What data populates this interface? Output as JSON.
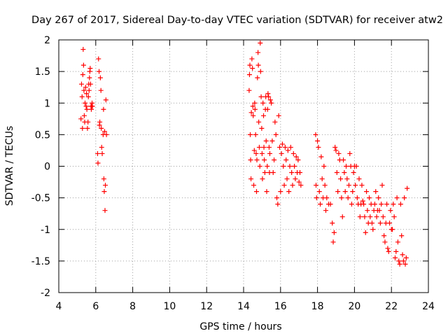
{
  "chart_data": {
    "type": "scatter",
    "title": "Day 267 of 2017, Sidereal Day-to-day VTEC variation (SDTVAR) for receiver atw2",
    "xlabel": "GPS time / hours",
    "ylabel": "SDTVAR / TECUs",
    "xlim": [
      4,
      24
    ],
    "ylim": [
      -2,
      2
    ],
    "xticks": [
      4,
      6,
      8,
      10,
      12,
      14,
      16,
      18,
      20,
      22,
      24
    ],
    "yticks": [
      -2,
      -1.5,
      -1,
      -0.5,
      0,
      0.5,
      1,
      1.5,
      2
    ],
    "xtick_labels": [
      "4",
      "6",
      "8",
      "10",
      "12",
      "14",
      "16",
      "18",
      "20",
      "22",
      "24"
    ],
    "ytick_labels": [
      "-2",
      "-1.5",
      "-1",
      "-0.5",
      "0",
      "0.5",
      "1",
      "1.5",
      "2"
    ],
    "grid": true,
    "marker": "+",
    "marker_color": "#ff0000",
    "series": [
      {
        "name": "SDTVAR",
        "points": [
          [
            5.2,
            0.75
          ],
          [
            5.23,
            1.3
          ],
          [
            5.26,
            1.1
          ],
          [
            5.28,
            0.6
          ],
          [
            5.3,
            1.45
          ],
          [
            5.32,
            1.85
          ],
          [
            5.34,
            1.6
          ],
          [
            5.36,
            1.2
          ],
          [
            5.38,
            0.8
          ],
          [
            5.4,
            0.7
          ],
          [
            5.42,
            1.0
          ],
          [
            5.45,
            1.25
          ],
          [
            5.48,
            0.95
          ],
          [
            5.5,
            1.15
          ],
          [
            5.52,
            0.9
          ],
          [
            5.55,
            0.6
          ],
          [
            5.58,
            0.7
          ],
          [
            5.6,
            1.1
          ],
          [
            5.62,
            1.3
          ],
          [
            5.64,
            1.2
          ],
          [
            5.66,
            1.4
          ],
          [
            5.68,
            1.5
          ],
          [
            5.7,
            1.55
          ],
          [
            5.72,
            1.3
          ],
          [
            5.74,
            0.95
          ],
          [
            5.76,
            0.9
          ],
          [
            5.78,
            0.95
          ],
          [
            5.8,
            1.0
          ],
          [
            5.82,
            0.95
          ],
          [
            6.1,
            0.2
          ],
          [
            6.12,
            0.05
          ],
          [
            6.15,
            1.7
          ],
          [
            6.18,
            1.5
          ],
          [
            6.2,
            0.65
          ],
          [
            6.22,
            0.7
          ],
          [
            6.25,
            1.4
          ],
          [
            6.28,
            1.2
          ],
          [
            6.3,
            0.6
          ],
          [
            6.32,
            0.3
          ],
          [
            6.35,
            0.2
          ],
          [
            6.4,
            0.5
          ],
          [
            6.42,
            0.9
          ],
          [
            6.44,
            -0.2
          ],
          [
            6.46,
            -0.4
          ],
          [
            6.48,
            0.55
          ],
          [
            6.5,
            -0.7
          ],
          [
            6.52,
            -0.3
          ],
          [
            6.55,
            1.05
          ],
          [
            6.58,
            0.5
          ],
          [
            14.3,
            1.2
          ],
          [
            14.32,
            1.45
          ],
          [
            14.34,
            1.6
          ],
          [
            14.36,
            0.5
          ],
          [
            14.38,
            0.1
          ],
          [
            14.4,
            -0.2
          ],
          [
            14.42,
            0.85
          ],
          [
            14.45,
            1.7
          ],
          [
            14.48,
            1.55
          ],
          [
            14.5,
            0.95
          ],
          [
            14.52,
            0.8
          ],
          [
            14.55,
            -0.3
          ],
          [
            14.58,
            0.25
          ],
          [
            14.6,
            1.0
          ],
          [
            14.62,
            0.9
          ],
          [
            14.65,
            0.5
          ],
          [
            14.68,
            0.2
          ],
          [
            14.7,
            -0.4
          ],
          [
            14.72,
            0.1
          ],
          [
            14.75,
            1.4
          ],
          [
            14.78,
            1.8
          ],
          [
            14.8,
            1.6
          ],
          [
            14.82,
            0.7
          ],
          [
            14.85,
            0.3
          ],
          [
            14.88,
            0.0
          ],
          [
            14.9,
            1.95
          ],
          [
            14.92,
            1.5
          ],
          [
            14.95,
            1.1
          ],
          [
            14.98,
            0.6
          ],
          [
            15.0,
            0.2
          ],
          [
            15.02,
            -0.2
          ],
          [
            15.05,
            1.0
          ],
          [
            15.08,
            0.8
          ],
          [
            15.1,
            0.3
          ],
          [
            15.12,
            0.1
          ],
          [
            15.15,
            -0.1
          ],
          [
            15.18,
            0.9
          ],
          [
            15.2,
            1.1
          ],
          [
            15.22,
            0.4
          ],
          [
            15.25,
            -0.4
          ],
          [
            15.28,
            0.0
          ],
          [
            15.3,
            0.9
          ],
          [
            15.32,
            1.15
          ],
          [
            15.35,
            1.1
          ],
          [
            15.38,
            0.3
          ],
          [
            15.4,
            -0.1
          ],
          [
            15.42,
            0.2
          ],
          [
            15.45,
            1.05
          ],
          [
            15.5,
            1.0
          ],
          [
            15.55,
            0.4
          ],
          [
            15.6,
            -0.1
          ],
          [
            15.65,
            0.1
          ],
          [
            15.7,
            0.7
          ],
          [
            15.75,
            0.5
          ],
          [
            15.8,
            -0.5
          ],
          [
            15.85,
            -0.6
          ],
          [
            15.9,
            0.8
          ],
          [
            15.95,
            0.3
          ],
          [
            16.0,
            -0.4
          ],
          [
            16.05,
            0.2
          ],
          [
            16.1,
            0.35
          ],
          [
            16.15,
            0.0
          ],
          [
            16.2,
            -0.3
          ],
          [
            16.25,
            0.3
          ],
          [
            16.3,
            0.1
          ],
          [
            16.35,
            -0.2
          ],
          [
            16.4,
            0.25
          ],
          [
            16.45,
            -0.4
          ],
          [
            16.5,
            0.0
          ],
          [
            16.55,
            0.3
          ],
          [
            16.6,
            -0.1
          ],
          [
            16.65,
            -0.3
          ],
          [
            16.7,
            0.2
          ],
          [
            16.75,
            0.0
          ],
          [
            16.8,
            -0.2
          ],
          [
            16.85,
            0.15
          ],
          [
            16.9,
            -0.1
          ],
          [
            16.95,
            0.1
          ],
          [
            17.0,
            -0.25
          ],
          [
            17.05,
            -0.1
          ],
          [
            17.1,
            -0.3
          ],
          [
            17.9,
            0.5
          ],
          [
            17.92,
            -0.3
          ],
          [
            17.95,
            -0.5
          ],
          [
            18.0,
            0.4
          ],
          [
            18.05,
            0.3
          ],
          [
            18.1,
            -0.4
          ],
          [
            18.15,
            -0.6
          ],
          [
            18.2,
            0.15
          ],
          [
            18.25,
            -0.2
          ],
          [
            18.3,
            -0.5
          ],
          [
            18.35,
            0.0
          ],
          [
            18.4,
            -0.3
          ],
          [
            18.45,
            -0.7
          ],
          [
            18.5,
            -0.5
          ],
          [
            18.6,
            -0.6
          ],
          [
            18.7,
            -0.6
          ],
          [
            18.8,
            -0.9
          ],
          [
            18.85,
            -1.2
          ],
          [
            18.9,
            -1.05
          ],
          [
            18.95,
            0.3
          ],
          [
            19.0,
            0.25
          ],
          [
            19.05,
            -0.1
          ],
          [
            19.1,
            -0.4
          ],
          [
            19.15,
            0.2
          ],
          [
            19.2,
            0.1
          ],
          [
            19.25,
            -0.2
          ],
          [
            19.3,
            -0.5
          ],
          [
            19.35,
            -0.8
          ],
          [
            19.4,
            0.1
          ],
          [
            19.45,
            -0.1
          ],
          [
            19.5,
            -0.4
          ],
          [
            19.55,
            0.0
          ],
          [
            19.6,
            -0.2
          ],
          [
            19.65,
            -0.5
          ],
          [
            19.7,
            -0.3
          ],
          [
            19.75,
            0.2
          ],
          [
            19.8,
            0.0
          ],
          [
            19.85,
            -0.6
          ],
          [
            19.9,
            -0.4
          ],
          [
            19.95,
            -0.1
          ],
          [
            20.0,
            0.0
          ],
          [
            20.05,
            -0.3
          ],
          [
            20.1,
            0.0
          ],
          [
            20.15,
            -0.5
          ],
          [
            20.2,
            -0.6
          ],
          [
            20.25,
            -0.2
          ],
          [
            20.3,
            -0.8
          ],
          [
            20.35,
            -0.6
          ],
          [
            20.4,
            -0.3
          ],
          [
            20.45,
            -0.55
          ],
          [
            20.5,
            -0.6
          ],
          [
            20.55,
            -0.8
          ],
          [
            20.6,
            -1.05
          ],
          [
            20.65,
            -0.4
          ],
          [
            20.7,
            -0.7
          ],
          [
            20.75,
            -0.9
          ],
          [
            20.8,
            -0.5
          ],
          [
            20.85,
            -0.8
          ],
          [
            20.9,
            -0.6
          ],
          [
            20.95,
            -0.9
          ],
          [
            21.0,
            -1.0
          ],
          [
            21.05,
            -0.7
          ],
          [
            21.1,
            -0.6
          ],
          [
            21.15,
            -0.4
          ],
          [
            21.2,
            -0.8
          ],
          [
            21.25,
            -0.7
          ],
          [
            21.3,
            -0.5
          ],
          [
            21.35,
            -0.7
          ],
          [
            21.4,
            -0.9
          ],
          [
            21.45,
            -0.6
          ],
          [
            21.5,
            -0.3
          ],
          [
            21.55,
            -0.8
          ],
          [
            21.6,
            -1.1
          ],
          [
            21.65,
            -1.2
          ],
          [
            21.7,
            -0.9
          ],
          [
            21.75,
            -0.6
          ],
          [
            21.8,
            -1.3
          ],
          [
            21.85,
            -1.35
          ],
          [
            21.9,
            -0.9
          ],
          [
            21.95,
            -0.7
          ],
          [
            22.0,
            -1.0
          ],
          [
            22.05,
            -1.0
          ],
          [
            22.1,
            -0.6
          ],
          [
            22.15,
            -0.8
          ],
          [
            22.2,
            -1.45
          ],
          [
            22.25,
            -1.35
          ],
          [
            22.3,
            -0.5
          ],
          [
            22.35,
            -1.2
          ],
          [
            22.4,
            -1.5
          ],
          [
            22.45,
            -1.55
          ],
          [
            22.5,
            -0.6
          ],
          [
            22.55,
            -1.1
          ],
          [
            22.6,
            -1.4
          ],
          [
            22.65,
            -1.5
          ],
          [
            22.7,
            -0.5
          ],
          [
            22.75,
            -1.55
          ],
          [
            22.8,
            -1.45
          ],
          [
            22.85,
            -0.35
          ]
        ]
      }
    ]
  }
}
